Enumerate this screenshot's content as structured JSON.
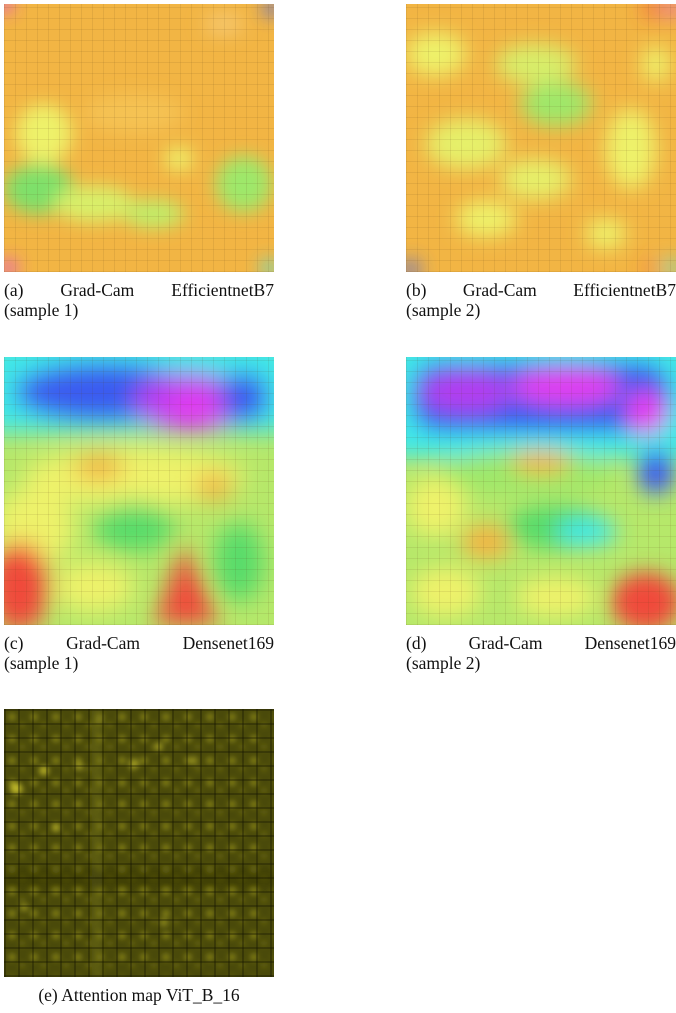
{
  "figure": {
    "panels": [
      {
        "id": "a",
        "label": "(a)",
        "caption_line1": [
          "Grad-Cam",
          "EfficientnetB7"
        ],
        "caption_line2": "(sample 1)"
      },
      {
        "id": "b",
        "label": "(b)",
        "caption_line1": [
          "Grad-Cam",
          "EfficientnetB7"
        ],
        "caption_line2": "(sample 2)"
      },
      {
        "id": "c",
        "label": "(c)",
        "caption_line1": [
          "Grad-Cam",
          "Densenet169"
        ],
        "caption_line2": "(sample 1)"
      },
      {
        "id": "d",
        "label": "(d)",
        "caption_line1": [
          "Grad-Cam",
          "Densenet169"
        ],
        "caption_line2": "(sample 2)"
      },
      {
        "id": "e",
        "label": "(e)",
        "caption": "Attention map ViT_B_16"
      }
    ],
    "colors": {
      "gradcam_base_orange": "#f2b544",
      "gradcam_yellow": "#eef26a",
      "gradcam_green": "#58dc6a",
      "gradcam_cyan": "#3fe8e8",
      "gradcam_blue": "#3a5cf0",
      "gradcam_magenta": "#e23ef0",
      "gradcam_red": "#f04a3a",
      "attention_base": "#4a4a0a",
      "attention_bright": "#d8d030"
    }
  }
}
